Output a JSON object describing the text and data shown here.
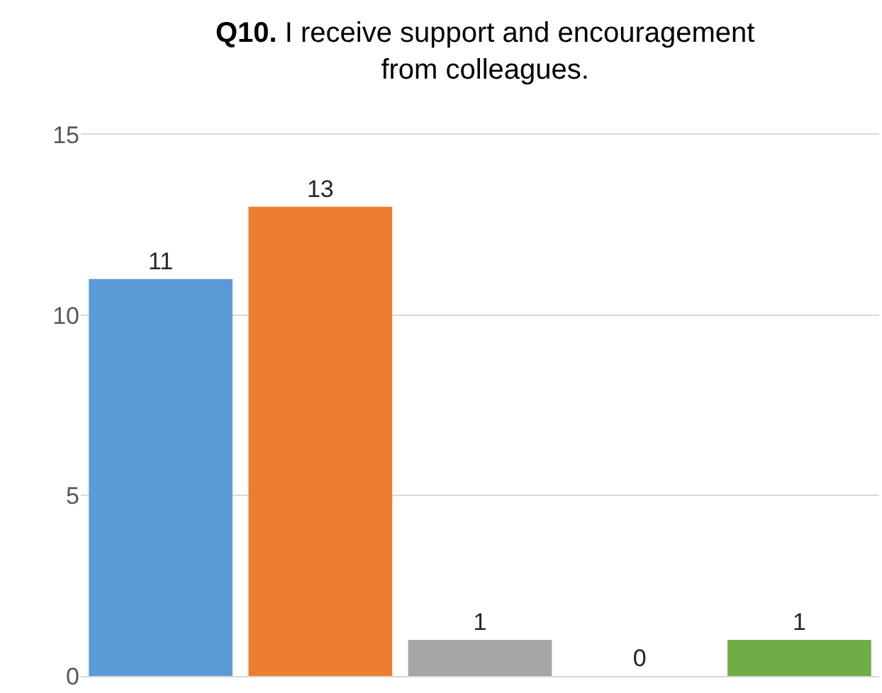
{
  "chart_data": {
    "type": "bar",
    "title": "Q10. I receive support and encouragement from colleagues.",
    "categories": [
      null,
      null,
      null,
      null,
      null
    ],
    "values": [
      11,
      13,
      1,
      0,
      1
    ],
    "colors": [
      "#5b9bd5",
      "#ed7d31",
      "#a5a5a5",
      "#ffc000",
      "#70ad47"
    ],
    "ylim": [
      0,
      15
    ],
    "yticks": [
      0,
      5,
      10,
      15
    ],
    "grid": "y",
    "data_labels": true,
    "tick_labels": "y"
  }
}
